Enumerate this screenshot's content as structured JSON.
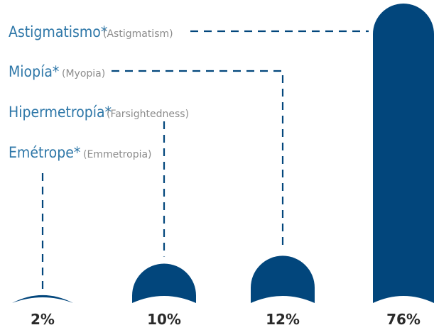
{
  "chart_data": {
    "type": "bar",
    "categories": [
      {
        "name": "Emétrope*",
        "alt": "(Emmetropia)"
      },
      {
        "name": "Hipermetropía*",
        "alt": "(Farsightedness)"
      },
      {
        "name": "Miopía*",
        "alt": "(Myopia)"
      },
      {
        "name": "Astigmatismo*",
        "alt": "(Astigmatism)"
      }
    ],
    "values": [
      2,
      10,
      12,
      76
    ],
    "value_labels": [
      "2%",
      "10%",
      "12%",
      "76%"
    ],
    "ylim": [
      0,
      76
    ],
    "grid": false,
    "legend": "top-left",
    "colors": {
      "bar": "#02467c",
      "legend_text": "#2e77a8",
      "legend_sub": "#8c8c8c",
      "leader": "#02467c",
      "value_text": "#2a2a2a"
    }
  }
}
